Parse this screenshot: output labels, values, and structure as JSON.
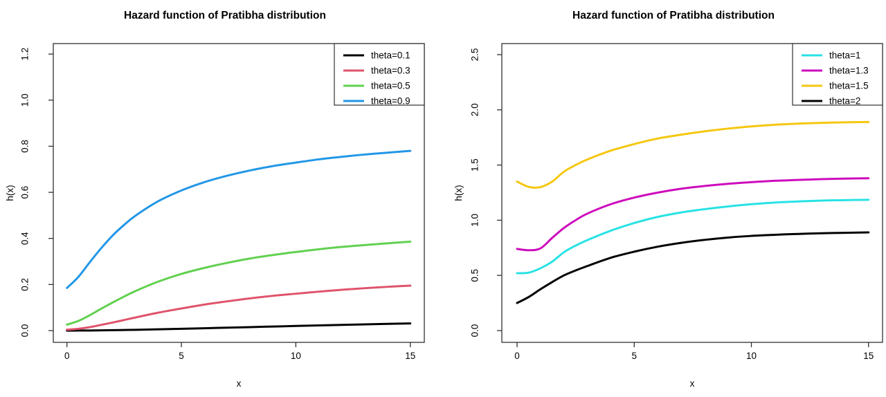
{
  "chart_data": [
    {
      "type": "line",
      "title": "Hazard function of Pratibha distribution",
      "xlabel": "x",
      "ylabel": "h(x)",
      "xlim": [
        0,
        15
      ],
      "ylim": [
        0,
        1.2
      ],
      "grid": false,
      "legend_position": "topright",
      "x_tick_values": [
        0,
        5,
        10,
        15
      ],
      "x_tick_labels": [
        "0",
        "5",
        "10",
        "15"
      ],
      "y_tick_values": [
        0,
        0.2,
        0.4,
        0.6,
        0.8,
        1.0,
        1.2
      ],
      "y_tick_labels": [
        "0.0",
        "0.2",
        "0.4",
        "0.6",
        "0.8",
        "1.0",
        "1.2"
      ],
      "x": [
        0,
        0.5,
        1,
        1.5,
        2,
        2.5,
        3,
        4,
        5,
        6,
        7,
        8,
        9,
        10,
        11,
        12,
        13,
        14,
        15
      ],
      "series": [
        {
          "name": "theta=0.1",
          "color": "#000000",
          "values": [
            0.0001,
            0.0002,
            0.0005,
            0.0011,
            0.0018,
            0.0026,
            0.0035,
            0.0056,
            0.0078,
            0.0103,
            0.0127,
            0.0152,
            0.0177,
            0.0201,
            0.0225,
            0.0248,
            0.027,
            0.0291,
            0.0311
          ]
        },
        {
          "name": "theta=0.3",
          "color": "#DF536B",
          "values": [
            0.004,
            0.008,
            0.015,
            0.025,
            0.035,
            0.046,
            0.057,
            0.078,
            0.096,
            0.113,
            0.127,
            0.14,
            0.151,
            0.16,
            0.169,
            0.177,
            0.184,
            0.19,
            0.195
          ]
        },
        {
          "name": "theta=0.5",
          "color": "#61D04F",
          "values": [
            0.026,
            0.042,
            0.067,
            0.095,
            0.122,
            0.148,
            0.172,
            0.213,
            0.246,
            0.272,
            0.294,
            0.313,
            0.328,
            0.341,
            0.353,
            0.363,
            0.371,
            0.379,
            0.386
          ]
        },
        {
          "name": "theta=0.9",
          "color": "#2297E6",
          "values": [
            0.185,
            0.233,
            0.297,
            0.358,
            0.413,
            0.459,
            0.499,
            0.562,
            0.608,
            0.644,
            0.672,
            0.695,
            0.714,
            0.729,
            0.743,
            0.754,
            0.764,
            0.772,
            0.78
          ]
        }
      ]
    },
    {
      "type": "line",
      "title": "Hazard function of Pratibha distribution",
      "xlabel": "x",
      "ylabel": "h(x)",
      "xlim": [
        0,
        15
      ],
      "ylim": [
        0,
        2.5
      ],
      "grid": false,
      "legend_position": "topright",
      "x_tick_values": [
        0,
        5,
        10,
        15
      ],
      "x_tick_labels": [
        "0",
        "5",
        "10",
        "15"
      ],
      "y_tick_values": [
        0,
        0.5,
        1.0,
        1.5,
        2.0,
        2.5
      ],
      "y_tick_labels": [
        "0.0",
        "0.5",
        "1.0",
        "1.5",
        "2.0",
        "2.5"
      ],
      "x": [
        0,
        0.5,
        1,
        1.5,
        2,
        2.5,
        3,
        4,
        5,
        6,
        7,
        8,
        9,
        10,
        11,
        12,
        13,
        14,
        15
      ],
      "series": [
        {
          "name": "theta=1",
          "color": "#28E2E5",
          "values": [
            0.52,
            0.525,
            0.565,
            0.625,
            0.71,
            0.77,
            0.82,
            0.905,
            0.975,
            1.03,
            1.07,
            1.1,
            1.125,
            1.145,
            1.16,
            1.17,
            1.178,
            1.182,
            1.185
          ]
        },
        {
          "name": "theta=1.3",
          "color": "#CD0BBC",
          "values": [
            0.74,
            0.728,
            0.745,
            0.84,
            0.93,
            1.0,
            1.06,
            1.145,
            1.205,
            1.25,
            1.285,
            1.31,
            1.33,
            1.345,
            1.357,
            1.365,
            1.372,
            1.377,
            1.38
          ]
        },
        {
          "name": "theta=1.5",
          "color": "#F5C710",
          "values": [
            1.35,
            1.302,
            1.3,
            1.35,
            1.44,
            1.5,
            1.55,
            1.63,
            1.69,
            1.74,
            1.775,
            1.805,
            1.83,
            1.85,
            1.865,
            1.875,
            1.882,
            1.887,
            1.89
          ]
        },
        {
          "name": "theta=2",
          "color": "#000000",
          "values": [
            0.25,
            0.305,
            0.375,
            0.44,
            0.5,
            0.545,
            0.585,
            0.66,
            0.715,
            0.76,
            0.795,
            0.822,
            0.843,
            0.858,
            0.868,
            0.876,
            0.882,
            0.886,
            0.89
          ]
        }
      ]
    }
  ]
}
